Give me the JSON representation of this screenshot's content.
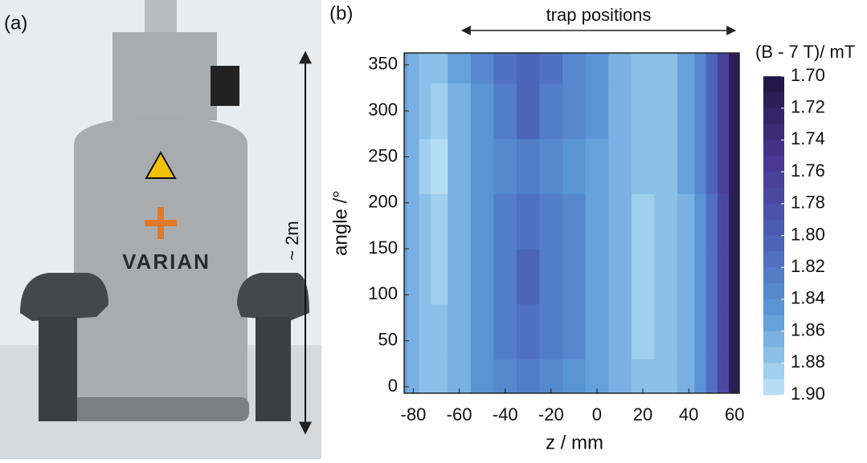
{
  "panel_a": {
    "label": "(a)",
    "brand": "VARIAN",
    "height_note": "~ 2m"
  },
  "chart_data": {
    "type": "contour",
    "panel_label": "(b)",
    "annotation": "trap positions",
    "x_label": "z / mm",
    "y_label": "angle /°",
    "colorbar_label": "(B - 7 T)/ mT",
    "xlim": [
      -84,
      62
    ],
    "ylim": [
      -7,
      363
    ],
    "xticks": [
      -80,
      -60,
      -40,
      -20,
      0,
      20,
      40,
      60
    ],
    "yticks": [
      0,
      50,
      100,
      150,
      200,
      250,
      300,
      350
    ],
    "x": [
      -85,
      -80,
      -75,
      -70,
      -60,
      -50,
      -40,
      -30,
      -20,
      -10,
      0,
      10,
      20,
      30,
      40,
      45,
      50,
      55,
      60
    ],
    "y": [
      0,
      60,
      120,
      180,
      240,
      300,
      360
    ],
    "z": [
      [
        1.85,
        1.86,
        1.87,
        1.87,
        1.86,
        1.84,
        1.83,
        1.82,
        1.83,
        1.84,
        1.85,
        1.86,
        1.87,
        1.87,
        1.86,
        1.84,
        1.81,
        1.77,
        1.71
      ],
      [
        1.85,
        1.86,
        1.87,
        1.875,
        1.86,
        1.84,
        1.82,
        1.81,
        1.82,
        1.835,
        1.85,
        1.865,
        1.88,
        1.875,
        1.86,
        1.84,
        1.81,
        1.77,
        1.71
      ],
      [
        1.85,
        1.86,
        1.875,
        1.88,
        1.86,
        1.84,
        1.82,
        1.8,
        1.82,
        1.835,
        1.85,
        1.865,
        1.88,
        1.875,
        1.86,
        1.84,
        1.81,
        1.77,
        1.71
      ],
      [
        1.85,
        1.86,
        1.875,
        1.88,
        1.86,
        1.84,
        1.825,
        1.815,
        1.825,
        1.835,
        1.85,
        1.865,
        1.885,
        1.875,
        1.86,
        1.84,
        1.81,
        1.77,
        1.71
      ],
      [
        1.85,
        1.865,
        1.88,
        1.89,
        1.865,
        1.845,
        1.83,
        1.82,
        1.83,
        1.84,
        1.85,
        1.86,
        1.875,
        1.87,
        1.855,
        1.835,
        1.805,
        1.765,
        1.71
      ],
      [
        1.85,
        1.86,
        1.875,
        1.88,
        1.86,
        1.84,
        1.82,
        1.8,
        1.82,
        1.835,
        1.845,
        1.86,
        1.87,
        1.87,
        1.855,
        1.835,
        1.805,
        1.765,
        1.71
      ],
      [
        1.85,
        1.86,
        1.87,
        1.875,
        1.855,
        1.835,
        1.815,
        1.8,
        1.815,
        1.83,
        1.845,
        1.86,
        1.87,
        1.87,
        1.855,
        1.835,
        1.805,
        1.765,
        1.71
      ]
    ],
    "zlim": [
      1.7,
      1.9
    ],
    "levels": [
      1.7,
      1.71,
      1.72,
      1.73,
      1.74,
      1.75,
      1.76,
      1.77,
      1.78,
      1.79,
      1.8,
      1.81,
      1.82,
      1.83,
      1.84,
      1.85,
      1.86,
      1.87,
      1.88,
      1.89,
      1.9
    ],
    "zticks": [
      {
        "value": 1.7,
        "label": "1.70"
      },
      1.72,
      1.74,
      1.76,
      1.78,
      {
        "value": 1.8,
        "label": "1.80"
      },
      1.82,
      1.84,
      1.86,
      1.88,
      {
        "value": 1.9,
        "label": "1.90"
      }
    ],
    "colormap": [
      "#1f1640",
      "#4a3490",
      "#4a5fb5",
      "#5b9ad8",
      "#bfe6f8"
    ]
  }
}
